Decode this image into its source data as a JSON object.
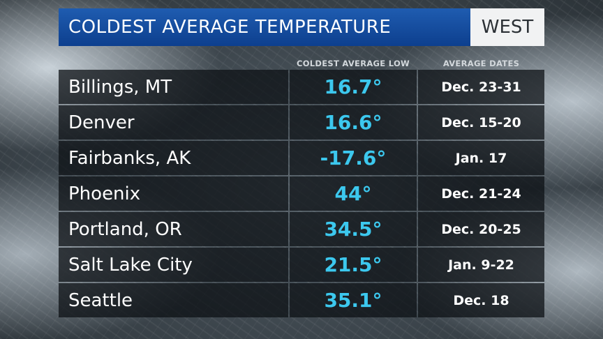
{
  "header": {
    "title": "COLDEST AVERAGE TEMPERATURE",
    "region": "WEST"
  },
  "columns": {
    "low_header": "COLDEST AVERAGE LOW",
    "dates_header": "AVERAGE DATES"
  },
  "colors": {
    "title_bar": "#1655a6",
    "temperature_text": "#3cc8ee",
    "cell_background": "#0c1014"
  },
  "table": {
    "rows": [
      {
        "city": "Billings, MT",
        "low": "16.7°",
        "dates": "Dec. 23-31"
      },
      {
        "city": "Denver",
        "low": "16.6°",
        "dates": "Dec. 15-20"
      },
      {
        "city": "Fairbanks, AK",
        "low": "-17.6°",
        "dates": "Jan. 17"
      },
      {
        "city": "Phoenix",
        "low": "44°",
        "dates": "Dec. 21-24"
      },
      {
        "city": "Portland, OR",
        "low": "34.5°",
        "dates": "Dec. 20-25"
      },
      {
        "city": "Salt Lake City",
        "low": "21.5°",
        "dates": "Jan. 9-22"
      },
      {
        "city": "Seattle",
        "low": "35.1°",
        "dates": "Dec. 18"
      }
    ]
  }
}
